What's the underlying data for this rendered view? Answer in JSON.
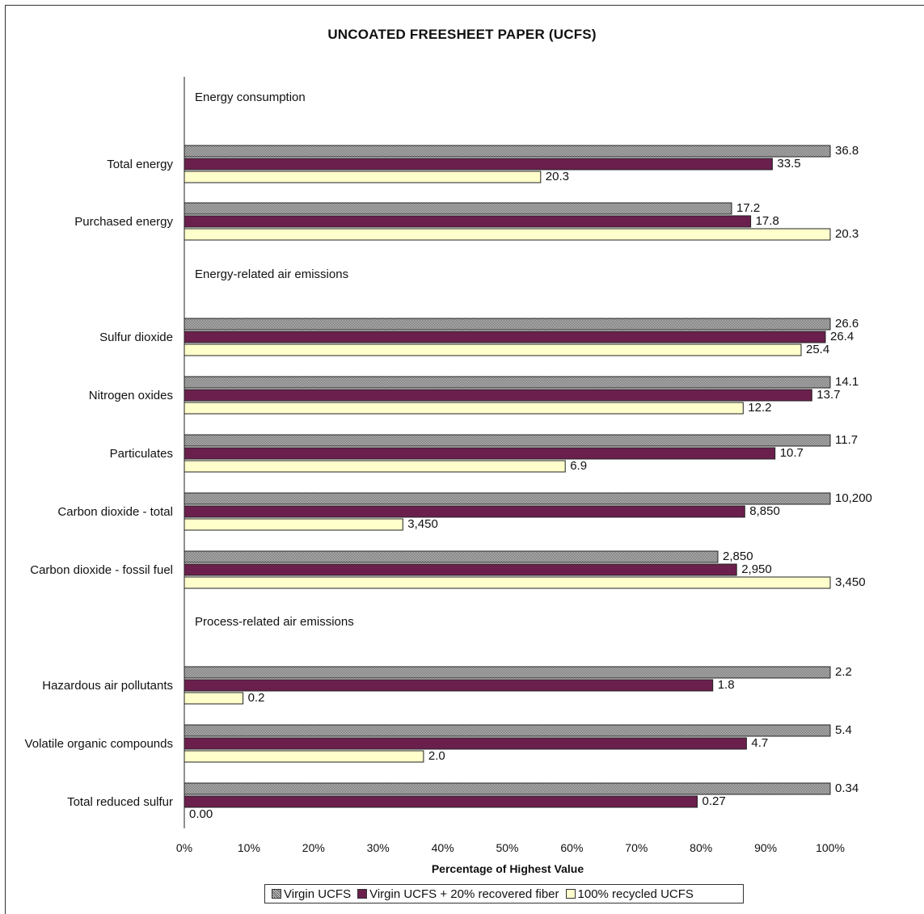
{
  "chart_data": {
    "type": "bar",
    "orientation": "horizontal",
    "title": "UNCOATED FREESHEET PAPER (UCFS)",
    "xlabel": "Percentage of Highest Value",
    "xlim": [
      0,
      100
    ],
    "x_ticks": [
      "0%",
      "10%",
      "20%",
      "30%",
      "40%",
      "50%",
      "60%",
      "70%",
      "80%",
      "90%",
      "100%"
    ],
    "grid": false,
    "legend_position": "bottom",
    "series": [
      {
        "name": "Virgin UCFS",
        "color": "#8c8c8c",
        "pattern": "checker"
      },
      {
        "name": "Virgin UCFS + 20% recovered fiber",
        "color": "#6b1f4d",
        "pattern": "solid"
      },
      {
        "name": "100% recycled UCFS",
        "color": "#ffffcc",
        "pattern": "solid"
      }
    ],
    "groups": [
      {
        "name": "Energy consumption",
        "categories": [
          {
            "label": "Total energy",
            "values": [
              36.8,
              33.5,
              20.3
            ],
            "labels": [
              "36.8",
              "33.5",
              "20.3"
            ]
          },
          {
            "label": "Purchased energy",
            "values": [
              17.2,
              17.8,
              20.3
            ],
            "labels": [
              "17.2",
              "17.8",
              "20.3"
            ]
          }
        ]
      },
      {
        "name": "Energy-related air emissions",
        "categories": [
          {
            "label": "Sulfur dioxide",
            "values": [
              26.6,
              26.4,
              25.4
            ],
            "labels": [
              "26.6",
              "26.4",
              "25.4"
            ]
          },
          {
            "label": "Nitrogen oxides",
            "values": [
              14.1,
              13.7,
              12.2
            ],
            "labels": [
              "14.1",
              "13.7",
              "12.2"
            ]
          },
          {
            "label": "Particulates",
            "values": [
              11.7,
              10.7,
              6.9
            ],
            "labels": [
              "11.7",
              "10.7",
              "6.9"
            ]
          },
          {
            "label": "Carbon dioxide - total",
            "values": [
              10200,
              8850,
              3450
            ],
            "labels": [
              "10,200",
              "8,850",
              "3,450"
            ]
          },
          {
            "label": "Carbon dioxide - fossil fuel",
            "values": [
              2850,
              2950,
              3450
            ],
            "labels": [
              "2,850",
              "2,950",
              "3,450"
            ]
          }
        ]
      },
      {
        "name": "Process-related air emissions",
        "categories": [
          {
            "label": "Hazardous air pollutants",
            "values": [
              2.2,
              1.8,
              0.2
            ],
            "labels": [
              "2.2",
              "1.8",
              "0.2"
            ]
          },
          {
            "label": "Volatile organic compounds",
            "values": [
              5.4,
              4.7,
              2.0
            ],
            "labels": [
              "5.4",
              "4.7",
              "2.0"
            ]
          },
          {
            "label": "Total reduced sulfur",
            "values": [
              0.34,
              0.27,
              0.0
            ],
            "labels": [
              "0.34",
              "0.27",
              "0.00"
            ]
          }
        ]
      }
    ]
  }
}
